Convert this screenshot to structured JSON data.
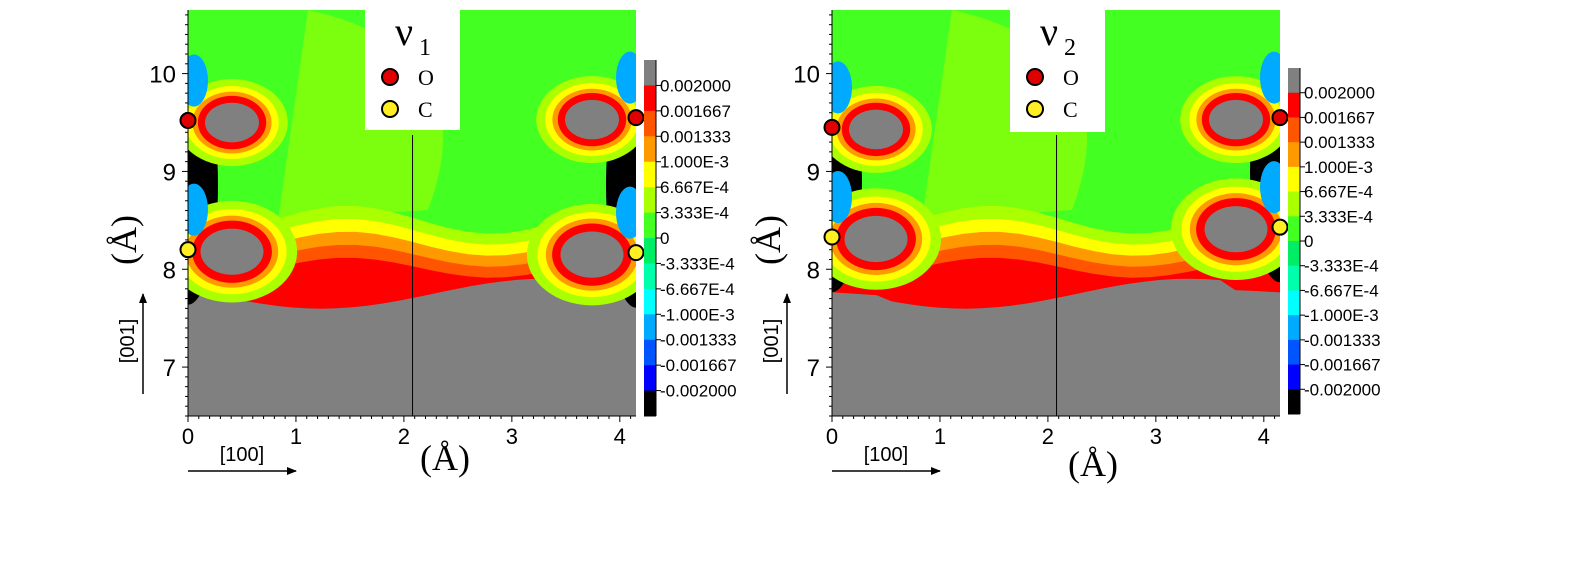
{
  "chart_data": [
    {
      "type": "heatmap",
      "title_symbol": "ν",
      "title_subscript": "1",
      "xlabel": "(Å)",
      "ylabel": "(Å)",
      "xlim": [
        0,
        4.15
      ],
      "ylim": [
        6.5,
        10.65
      ],
      "xticks": [
        "0",
        "1",
        "2",
        "3",
        "4"
      ],
      "yticks": [
        "7",
        "8",
        "9",
        "10"
      ],
      "x_direction_label": "[100]",
      "y_direction_label": "[001]",
      "legend": [
        {
          "name": "O",
          "color": "#e00000"
        },
        {
          "name": "C",
          "color": "#ffee22"
        }
      ],
      "colorbar": {
        "labels": [
          "0.002000",
          "0.001667",
          "0.001333",
          "1.000E-3",
          "6.667E-4",
          "3.333E-4",
          "0",
          "-3.333E-4",
          "-6.667E-4",
          "-1.000E-3",
          "-0.001333",
          "-0.001667",
          "-0.002000"
        ],
        "colors": [
          "#808080",
          "#ff0000",
          "#ff5500",
          "#ff9900",
          "#ffff00",
          "#aaff00",
          "#44ff22",
          "#00ee66",
          "#00ffaa",
          "#00ffff",
          "#00aaff",
          "#0055ff",
          "#0000ff",
          "#000000"
        ]
      },
      "atoms": [
        {
          "element": "O",
          "x": 0.0,
          "y": 9.52
        },
        {
          "element": "C",
          "x": 0.0,
          "y": 8.2
        },
        {
          "element": "O",
          "x": 4.15,
          "y": 9.55
        },
        {
          "element": "C",
          "x": 4.15,
          "y": 8.17
        }
      ],
      "divider_x": 2.08
    },
    {
      "type": "heatmap",
      "title_symbol": "ν",
      "title_subscript": "2",
      "xlabel": "(Å)",
      "ylabel": "(Å)",
      "xlim": [
        0,
        4.15
      ],
      "ylim": [
        6.5,
        10.65
      ],
      "xticks": [
        "0",
        "1",
        "2",
        "3",
        "4"
      ],
      "yticks": [
        "7",
        "8",
        "9",
        "10"
      ],
      "x_direction_label": "[100]",
      "y_direction_label": "[001]",
      "legend": [
        {
          "name": "O",
          "color": "#e00000"
        },
        {
          "name": "C",
          "color": "#ffee22"
        }
      ],
      "colorbar": {
        "labels": [
          "0.002000",
          "0.001667",
          "0.001333",
          "1.000E-3",
          "6.667E-4",
          "3.333E-4",
          "0",
          "-3.333E-4",
          "-6.667E-4",
          "-1.000E-3",
          "-0.001333",
          "-0.001667",
          "-0.002000"
        ],
        "colors": [
          "#808080",
          "#ff0000",
          "#ff5500",
          "#ff9900",
          "#ffff00",
          "#aaff00",
          "#44ff22",
          "#00ee66",
          "#00ffaa",
          "#00ffff",
          "#00aaff",
          "#0055ff",
          "#0000ff",
          "#000000"
        ]
      },
      "atoms": [
        {
          "element": "O",
          "x": 0.0,
          "y": 9.45
        },
        {
          "element": "C",
          "x": 0.0,
          "y": 8.33
        },
        {
          "element": "O",
          "x": 4.15,
          "y": 9.55
        },
        {
          "element": "C",
          "x": 4.15,
          "y": 8.43
        }
      ],
      "divider_x": 2.08
    }
  ]
}
